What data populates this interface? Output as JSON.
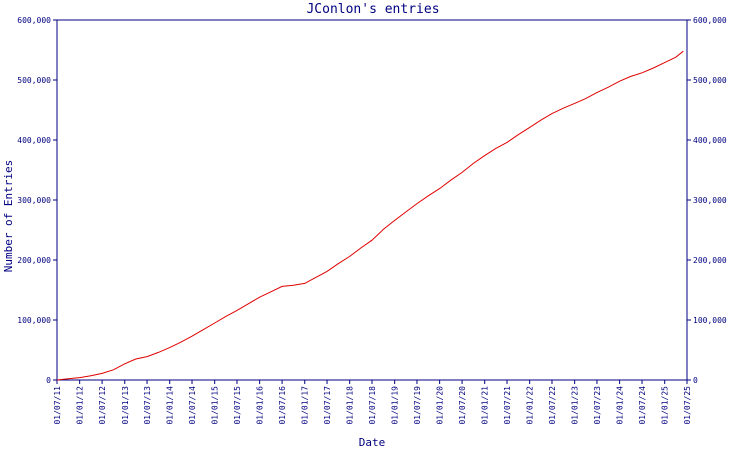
{
  "chart_data": {
    "type": "line",
    "title": "JConlon's entries",
    "xlabel": "Date",
    "ylabel": "Number of Entries",
    "x_ticks": [
      "01/07/11",
      "01/01/12",
      "01/07/12",
      "01/01/13",
      "01/07/13",
      "01/01/14",
      "01/07/14",
      "01/01/15",
      "01/07/15",
      "01/01/16",
      "01/07/16",
      "01/01/17",
      "01/07/17",
      "01/01/18",
      "01/07/18",
      "01/01/19",
      "01/07/19",
      "01/01/20",
      "01/07/20",
      "01/01/21",
      "01/07/21",
      "01/01/22",
      "01/07/22",
      "01/01/23",
      "01/07/23",
      "01/01/24",
      "01/07/24",
      "01/01/25",
      "01/07/25"
    ],
    "y_ticks": [
      "0",
      "100,000",
      "200,000",
      "300,000",
      "400,000",
      "500,000",
      "600,000"
    ],
    "ylim": [
      0,
      600000
    ],
    "grid": false,
    "legend": "none",
    "line_color": "#e00000",
    "axis_color": "#000080",
    "series": [
      {
        "x": [
          "2011-07-01",
          "2011-10-01",
          "2012-01-01",
          "2012-04-01",
          "2012-07-01",
          "2012-10-01",
          "2013-01-01",
          "2013-04-01",
          "2013-07-01",
          "2013-10-01",
          "2014-01-01",
          "2014-04-01",
          "2014-07-01",
          "2014-10-01",
          "2015-01-01",
          "2015-04-01",
          "2015-07-01",
          "2015-10-01",
          "2016-01-01",
          "2016-04-01",
          "2016-07-01",
          "2016-10-01",
          "2017-01-01",
          "2017-04-01",
          "2017-07-01",
          "2017-10-01",
          "2018-01-01",
          "2018-04-01",
          "2018-07-01",
          "2018-10-01",
          "2019-01-01",
          "2019-04-01",
          "2019-07-01",
          "2019-10-01",
          "2020-01-01",
          "2020-04-01",
          "2020-07-01",
          "2020-10-01",
          "2021-01-01",
          "2021-04-01",
          "2021-07-01",
          "2021-10-01",
          "2022-01-01",
          "2022-04-01",
          "2022-07-01",
          "2022-10-01",
          "2023-01-01",
          "2023-04-01",
          "2023-07-01",
          "2023-10-01",
          "2024-01-01",
          "2024-04-01",
          "2024-07-01",
          "2024-10-01",
          "2025-01-01",
          "2025-04-01",
          "2025-06-01"
        ],
        "values": [
          0,
          2000,
          4000,
          7000,
          11000,
          17000,
          27000,
          35000,
          39000,
          46000,
          54000,
          63000,
          73000,
          84000,
          95000,
          106000,
          116000,
          127000,
          138000,
          147000,
          156000,
          158000,
          161000,
          171000,
          181000,
          194000,
          206000,
          220000,
          233000,
          251000,
          266000,
          280000,
          294000,
          307000,
          319000,
          333000,
          346000,
          361000,
          374000,
          386000,
          396000,
          409000,
          421000,
          433000,
          444000,
          453000,
          461000,
          469000,
          479000,
          488000,
          498000,
          506000,
          512000,
          520000,
          529000,
          538000,
          548000
        ]
      }
    ]
  }
}
